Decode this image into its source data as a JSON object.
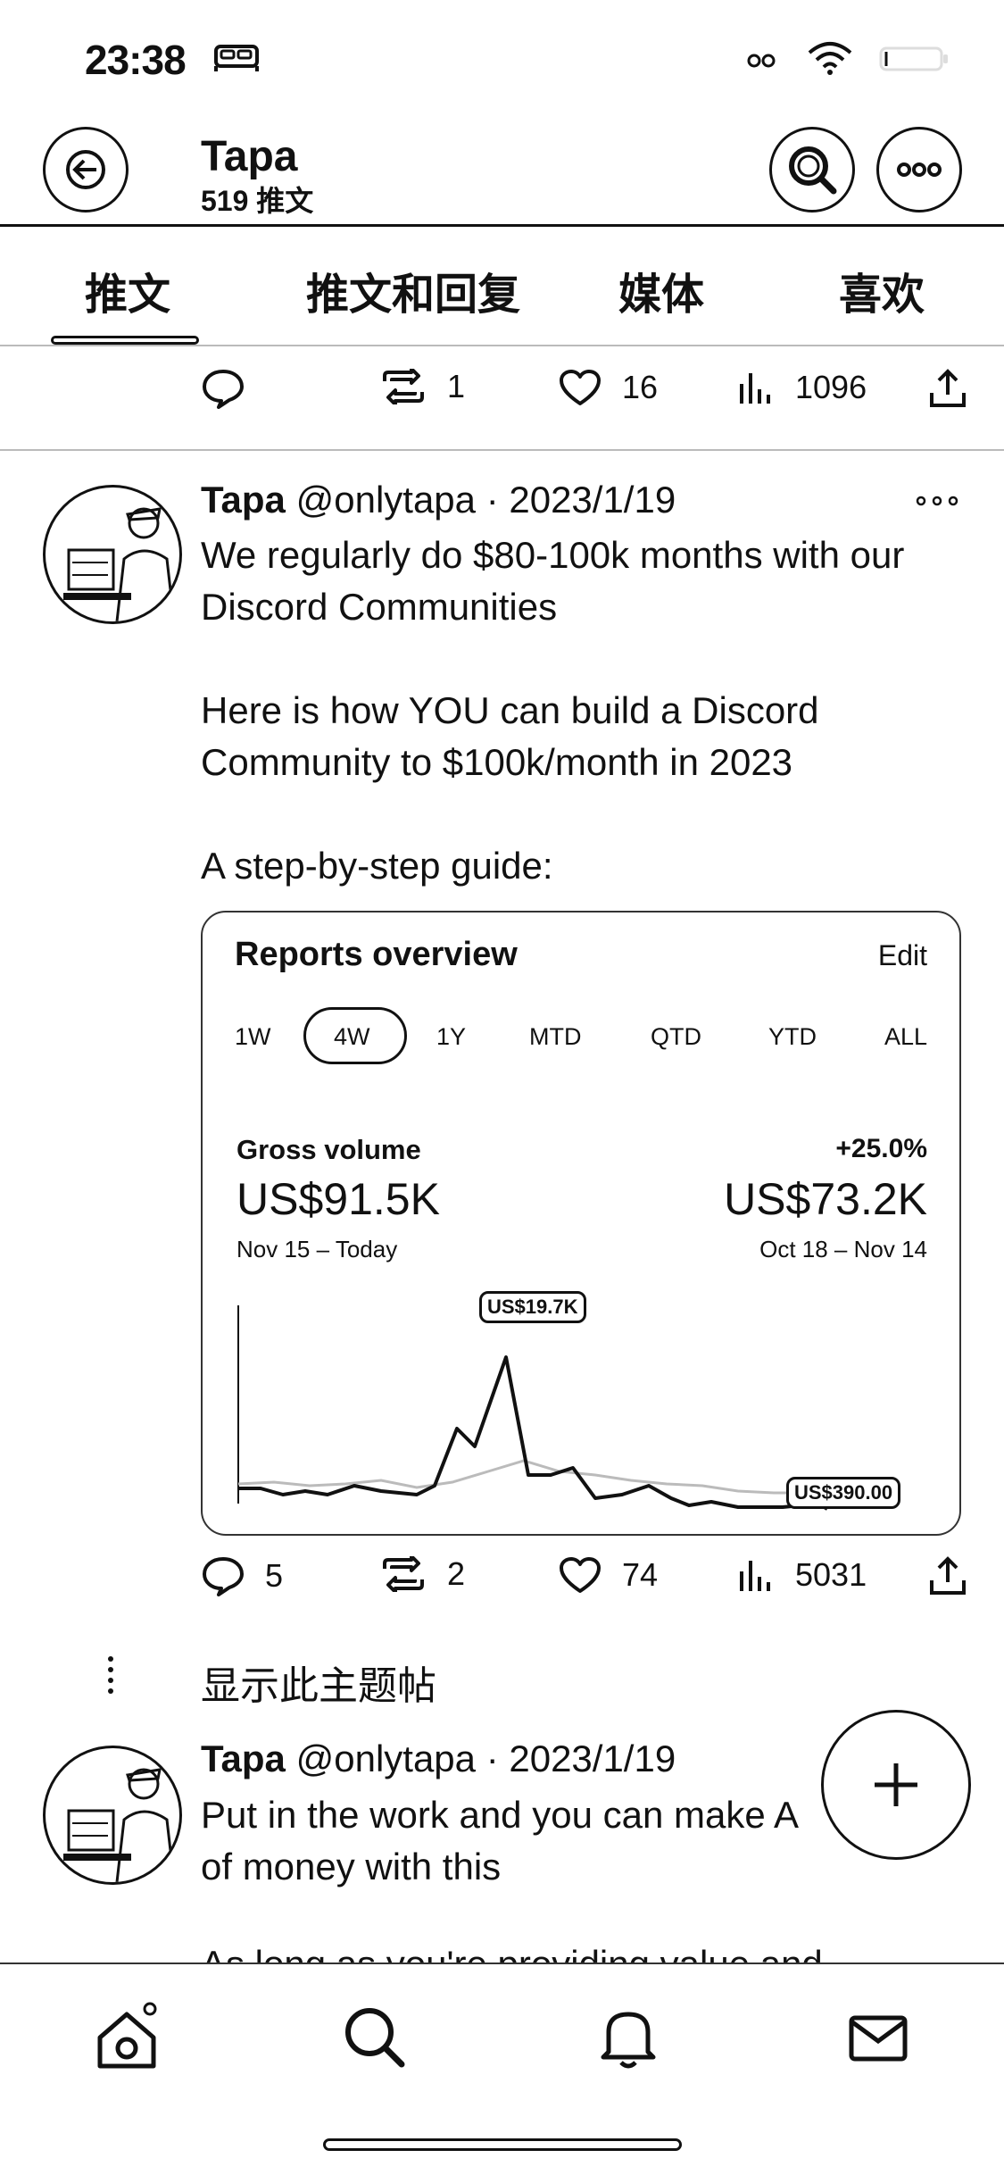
{
  "status_bar": {
    "time": "23:38"
  },
  "header": {
    "name": "Tapa",
    "tweet_count": "519 推文"
  },
  "tabs": [
    {
      "label": "推文"
    },
    {
      "label": "推文和回复"
    },
    {
      "label": "媒体"
    },
    {
      "label": "喜欢"
    }
  ],
  "prev_tweet_actions": {
    "replies": "",
    "retweets": "1",
    "likes": "16",
    "views": "1096"
  },
  "tweet1": {
    "name": "Tapa",
    "handle": "@onlytapa · 2023/1/19",
    "text": "We regularly do $80-100k months with our Discord Communities\n\nHere is how YOU can build a Discord Community to $100k/month in 2023\n\nA step-by-step guide:",
    "actions": {
      "replies": "5",
      "retweets": "2",
      "likes": "74",
      "views": "5031"
    }
  },
  "report_card": {
    "title": "Reports overview",
    "edit": "Edit",
    "periods": [
      "1W",
      "4W",
      "1Y",
      "MTD",
      "QTD",
      "YTD",
      "ALL"
    ],
    "active_period": "4W",
    "metric_label": "Gross volume",
    "change": "+25.0%",
    "current_value": "US$91.5K",
    "previous_value": "US$73.2K",
    "current_range": "Nov 15 – Today",
    "previous_range": "Oct 18 – Nov 14",
    "peak_label": "US$19.7K",
    "last_label": "US$390.00"
  },
  "show_thread": "显示此主题帖",
  "tweet2": {
    "name": "Tapa",
    "handle": "@onlytapa · 2023/1/19",
    "text": "Put in the work and you can make A\nof money with this",
    "clipped_next": "As long as you're providing value and"
  },
  "icons": {
    "back": "back-arrow-icon",
    "search": "search-icon",
    "more": "more-icon",
    "compose": "plus-icon",
    "home": "home-icon",
    "explore": "search-icon",
    "notifications": "bell-icon",
    "messages": "mail-icon"
  }
}
